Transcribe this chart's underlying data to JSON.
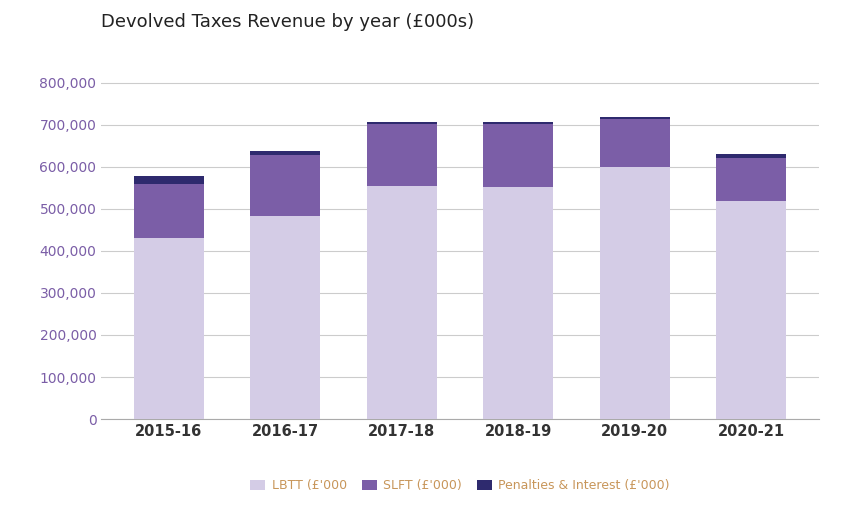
{
  "title": "Devolved Taxes Revenue by year (£000s)",
  "categories": [
    "2015-16",
    "2016-17",
    "2017-18",
    "2018-19",
    "2019-20",
    "2020-21"
  ],
  "lbtt": [
    430000,
    484000,
    555000,
    553000,
    601000,
    518000
  ],
  "slft": [
    130000,
    145000,
    148000,
    150000,
    113000,
    104000
  ],
  "penalties": [
    18000,
    9000,
    5000,
    5000,
    6000,
    8000
  ],
  "color_lbtt": "#d4cce6",
  "color_slft": "#7b5ea7",
  "color_penalties": "#2e2a6e",
  "legend_labels": [
    "LBTT (£'000",
    "SLFT (£'000)",
    "Penalties & Interest (£'000)"
  ],
  "ylim": [
    0,
    900000
  ],
  "yticks": [
    0,
    100000,
    200000,
    300000,
    400000,
    500000,
    600000,
    700000,
    800000
  ],
  "background_color": "#ffffff",
  "grid_color": "#cccccc",
  "title_color": "#222222",
  "ytick_color": "#7b5ea7",
  "xtick_color": "#333333",
  "legend_text_color": "#c8965a",
  "bar_width": 0.6
}
